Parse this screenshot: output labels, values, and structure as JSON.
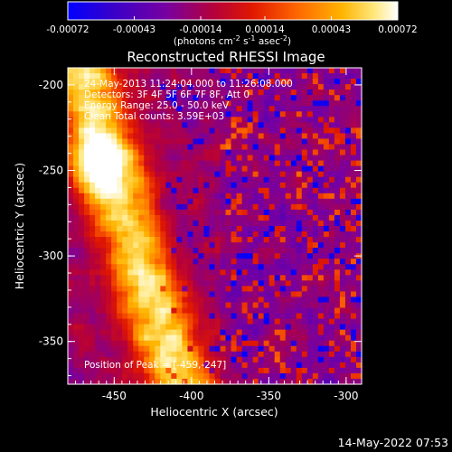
{
  "chart_data": {
    "type": "heatmap",
    "title": "Reconstructed RHESSI Image",
    "xlabel": "Heliocentric X (arcsec)",
    "ylabel": "Heliocentric Y (arcsec)",
    "xlim": [
      -480,
      -290
    ],
    "ylim": [
      -375,
      -190
    ],
    "x_ticks": [
      "-450",
      "-400",
      "-350",
      "-300"
    ],
    "x_tick_values": [
      -450,
      -400,
      -350,
      -300
    ],
    "y_ticks": [
      "-200",
      "-250",
      "-300",
      "-350"
    ],
    "y_tick_values": [
      -200,
      -250,
      -300,
      -350
    ],
    "colorbar": {
      "ticks": [
        "-0.00072",
        "-0.00043",
        "-0.00014",
        "0.00014",
        "0.00043",
        "0.00072"
      ],
      "tick_values": [
        -0.00072,
        -0.00043,
        -0.00014,
        0.00014,
        0.00043,
        0.00072
      ],
      "range": [
        -0.00072,
        0.00072
      ],
      "unit_main": "(photons cm",
      "unit_sup1": "-2",
      "unit_mid": " s",
      "unit_sup2": "-1",
      "unit_end": " asec",
      "unit_sup3": "-2",
      "unit_close": ")",
      "colors": [
        "#0000ff",
        "#3a00c8",
        "#7800a0",
        "#b4003c",
        "#e01800",
        "#ff6a00",
        "#ffb400",
        "#ffe880",
        "#ffffff"
      ]
    },
    "annotations": {
      "time_range": "24-May-2013 11:24:04.000 to 11:26:08.000",
      "detectors": "Detectors: 3F 4F 5F 6F 7F 8F, Att 0",
      "energy": "Energy Range: 25.0 - 50.0 keV",
      "clean": "Clean    Total counts: 3.59E+03",
      "peak": "Position of Peak = [-459,-247]"
    },
    "peak": {
      "x": -459,
      "y": -247
    },
    "grid": false
  },
  "footer": {
    "timestamp": "14-May-2022 07:53"
  }
}
